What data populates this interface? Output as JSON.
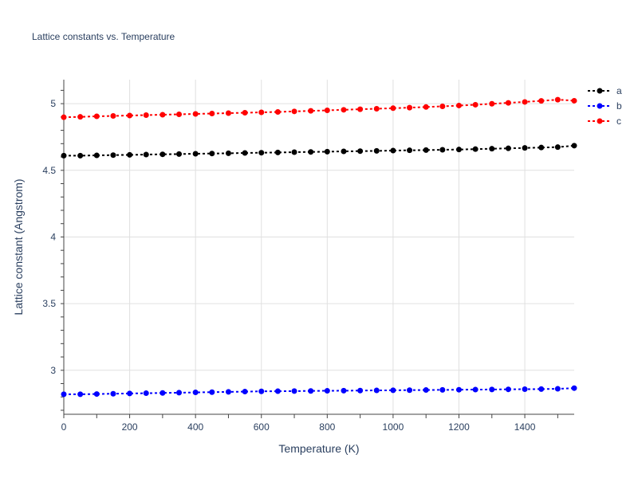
{
  "chart_data": {
    "type": "line",
    "title": "Lattice constants vs. Temperature",
    "xlabel": "Temperature (K)",
    "ylabel": "Lattice constant (Angstrom)",
    "xlim": [
      0,
      1550
    ],
    "ylim": [
      2.67,
      5.18
    ],
    "xticks": [
      0,
      200,
      400,
      600,
      800,
      1000,
      1200,
      1400
    ],
    "yticks": [
      3,
      3.5,
      4,
      4.5,
      5
    ],
    "grid": true,
    "legend_position": "top-right",
    "x": [
      0,
      50,
      100,
      150,
      200,
      250,
      300,
      350,
      400,
      450,
      500,
      550,
      600,
      650,
      700,
      750,
      800,
      850,
      900,
      950,
      1000,
      1050,
      1100,
      1150,
      1200,
      1250,
      1300,
      1350,
      1400,
      1450,
      1500,
      1550
    ],
    "series": [
      {
        "name": "a",
        "color": "#000000",
        "values": [
          4.61,
          4.61,
          4.612,
          4.614,
          4.616,
          4.618,
          4.62,
          4.622,
          4.624,
          4.626,
          4.628,
          4.63,
          4.632,
          4.634,
          4.636,
          4.638,
          4.64,
          4.642,
          4.644,
          4.646,
          4.648,
          4.65,
          4.652,
          4.654,
          4.656,
          4.659,
          4.662,
          4.665,
          4.668,
          4.671,
          4.674,
          4.685
        ]
      },
      {
        "name": "b",
        "color": "#0000ff",
        "values": [
          2.82,
          2.82,
          2.822,
          2.824,
          2.826,
          2.828,
          2.83,
          2.832,
          2.834,
          2.836,
          2.838,
          2.84,
          2.842,
          2.843,
          2.844,
          2.845,
          2.846,
          2.847,
          2.848,
          2.849,
          2.85,
          2.851,
          2.852,
          2.853,
          2.854,
          2.855,
          2.856,
          2.857,
          2.858,
          2.859,
          2.861,
          2.866
        ]
      },
      {
        "name": "c",
        "color": "#ff0000",
        "values": [
          4.898,
          4.901,
          4.905,
          4.908,
          4.911,
          4.914,
          4.917,
          4.92,
          4.923,
          4.926,
          4.929,
          4.932,
          4.935,
          4.938,
          4.942,
          4.946,
          4.95,
          4.954,
          4.958,
          4.962,
          4.966,
          4.97,
          4.975,
          4.98,
          4.986,
          4.992,
          4.999,
          5.006,
          5.013,
          5.021,
          5.03,
          5.022
        ]
      }
    ]
  }
}
